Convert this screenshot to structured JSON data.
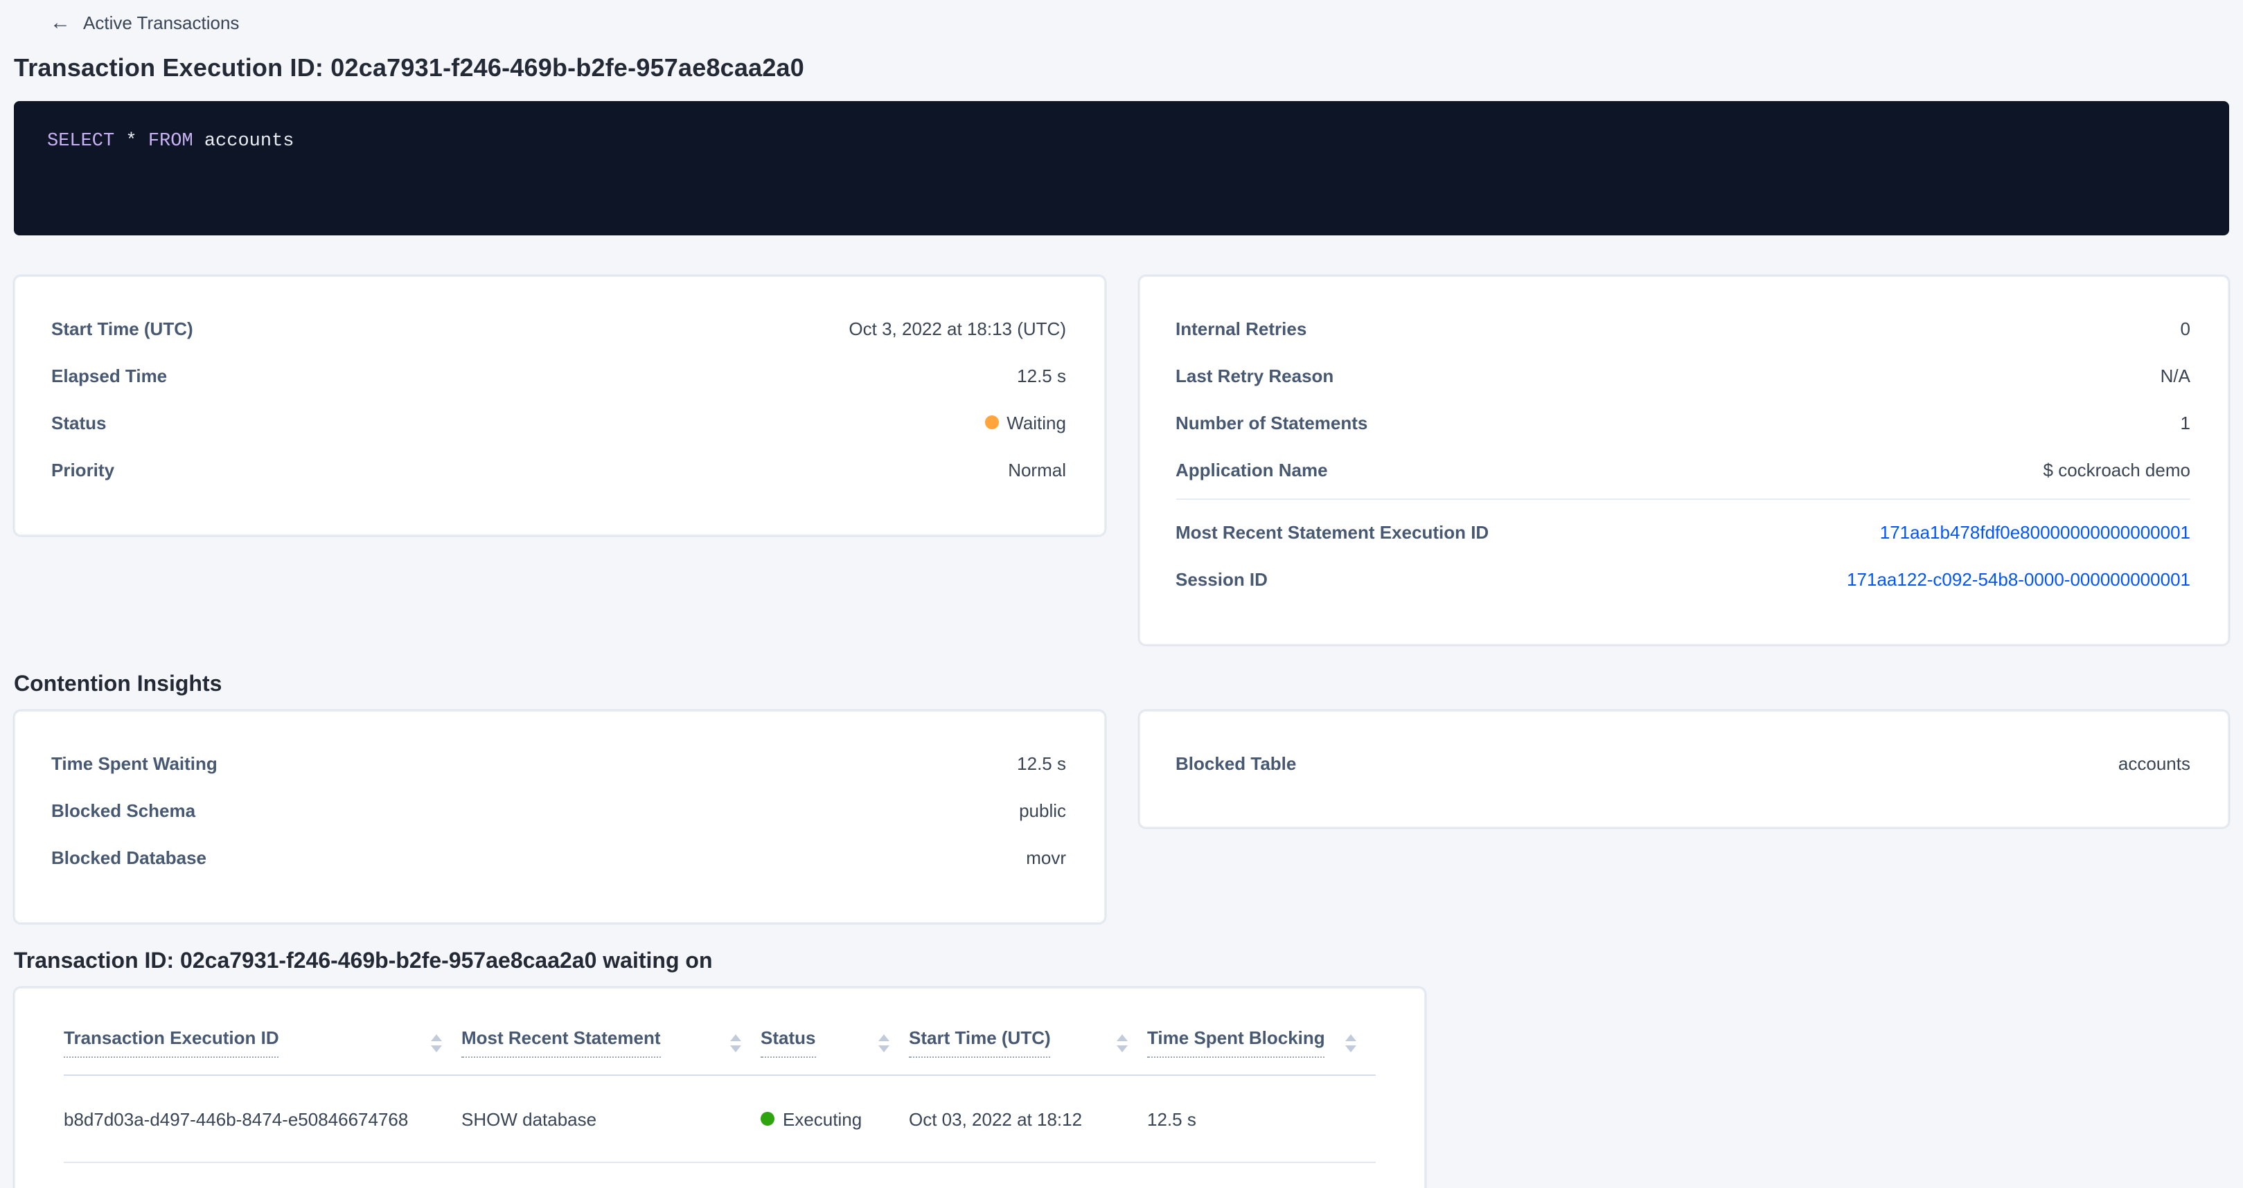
{
  "icons": {
    "back_arrow": "←"
  },
  "colors": {
    "page_background": "#f4f6fa",
    "sql_box_background": "#0e1526",
    "sql_keyword": "#c8b3f2",
    "link": "#0055ff",
    "waiting_dot": "#ffa53b",
    "executing_dot": "#2ea50e"
  },
  "page": {
    "back_label": "Active Transactions",
    "title": "Transaction Execution ID: 02ca7931-f246-469b-b2fe-957ae8caa2a0"
  },
  "sql": {
    "kw_select": "SELECT",
    "star": " * ",
    "kw_from": "FROM",
    "table": " accounts"
  },
  "transaction_details": {
    "left": {
      "rows": [
        {
          "label": "Start Time (UTC)",
          "value": "Oct 3, 2022 at 18:13 (UTC)"
        },
        {
          "label": "Elapsed Time",
          "value": "12.5 s"
        },
        {
          "label": "Status",
          "value": "Waiting"
        },
        {
          "label": "Priority",
          "value": "Normal"
        }
      ]
    },
    "right": {
      "rows": [
        {
          "label": "Internal Retries",
          "value": "0"
        },
        {
          "label": "Last Retry Reason",
          "value": "N/A"
        },
        {
          "label": "Number of Statements",
          "value": "1"
        },
        {
          "label": "Application Name",
          "value": "$ cockroach demo"
        }
      ],
      "links": [
        {
          "label": "Most Recent Statement Execution ID",
          "value": "171aa1b478fdf0e80000000000000001"
        },
        {
          "label": "Session ID",
          "value": "171aa122-c092-54b8-0000-000000000001"
        }
      ]
    }
  },
  "contention": {
    "heading": "Contention Insights",
    "left": {
      "rows": [
        {
          "label": "Time Spent Waiting",
          "value": "12.5 s"
        },
        {
          "label": "Blocked Schema",
          "value": "public"
        },
        {
          "label": "Blocked Database",
          "value": "movr"
        }
      ]
    },
    "right": {
      "rows": [
        {
          "label": "Blocked Table",
          "value": "accounts"
        }
      ]
    }
  },
  "waiting_on": {
    "heading": "Transaction ID: 02ca7931-f246-469b-b2fe-957ae8caa2a0 waiting on",
    "table": {
      "headers": [
        "Transaction Execution ID",
        "Most Recent Statement",
        "Status",
        "Start Time (UTC)",
        "Time Spent Blocking"
      ],
      "rows": [
        {
          "execution_id": "b8d7d03a-d497-446b-8474-e50846674768",
          "statement": "SHOW database",
          "status": "Executing",
          "start_time": "Oct 03, 2022 at 18:12",
          "time_blocking": "12.5 s"
        }
      ]
    }
  }
}
